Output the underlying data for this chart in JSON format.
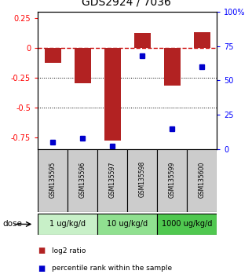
{
  "title": "GDS2924 / 7036",
  "samples": [
    "GSM135595",
    "GSM135596",
    "GSM135597",
    "GSM135598",
    "GSM135599",
    "GSM135600"
  ],
  "log2_ratios": [
    -0.13,
    -0.3,
    -0.78,
    0.12,
    -0.32,
    0.13
  ],
  "percentile_ranks": [
    5,
    8,
    2,
    68,
    15,
    60
  ],
  "doses": [
    {
      "label": "1 ug/kg/d",
      "samples": [
        0,
        1
      ],
      "color": "#c8f0c8"
    },
    {
      "label": "10 ug/kg/d",
      "samples": [
        2,
        3
      ],
      "color": "#90e090"
    },
    {
      "label": "1000 ug/kg/d",
      "samples": [
        4,
        5
      ],
      "color": "#50c850"
    }
  ],
  "ylim_left": [
    -0.85,
    0.3
  ],
  "ylim_right": [
    0,
    100
  ],
  "yticks_left": [
    0.25,
    0.0,
    -0.25,
    -0.5,
    -0.75
  ],
  "ytick_labels_left": [
    "0.25",
    "0",
    "-0.25",
    "-0.5",
    "-0.75"
  ],
  "yticks_right": [
    0,
    25,
    50,
    75,
    100
  ],
  "ytick_labels_right": [
    "0",
    "25",
    "50",
    "75",
    "100%"
  ],
  "bar_color": "#b22222",
  "dot_color": "#0000cc",
  "zero_line_color": "#cc0000",
  "sample_box_color": "#cccccc",
  "legend_items": [
    {
      "color": "#b22222",
      "label": "log2 ratio"
    },
    {
      "color": "#0000cc",
      "label": "percentile rank within the sample"
    }
  ]
}
